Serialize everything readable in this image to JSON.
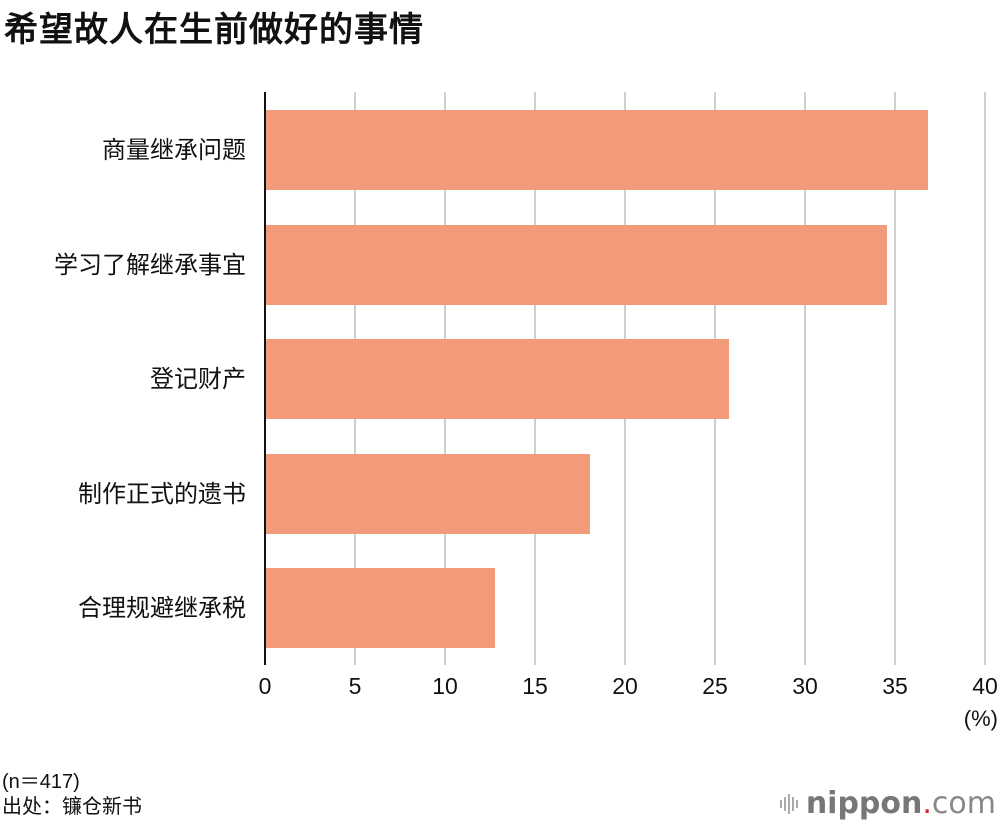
{
  "title": "希望故人在生前做好的事情",
  "chart_data": {
    "type": "bar",
    "orientation": "horizontal",
    "title": "希望故人在生前做好的事情",
    "categories": [
      "商量继承问题",
      "学习了解继承事宜",
      "登记财产",
      "制作正式的遗书",
      "合理规避继承税"
    ],
    "values": [
      36.8,
      34.5,
      25.7,
      18.0,
      12.7
    ],
    "xlabel": "(%)",
    "ylabel": "",
    "xlim": [
      0,
      40
    ],
    "xticks": [
      "0",
      "5",
      "10",
      "15",
      "20",
      "25",
      "30",
      "35",
      "40"
    ],
    "grid": true,
    "bar_color": "#f19b7b"
  },
  "axis": {
    "unit": "(%)"
  },
  "footer": {
    "sample": "(n＝417)",
    "source": "出处：镰仓新书",
    "logo_main": "nippon",
    "logo_dot": ".",
    "logo_suffix": "com"
  }
}
